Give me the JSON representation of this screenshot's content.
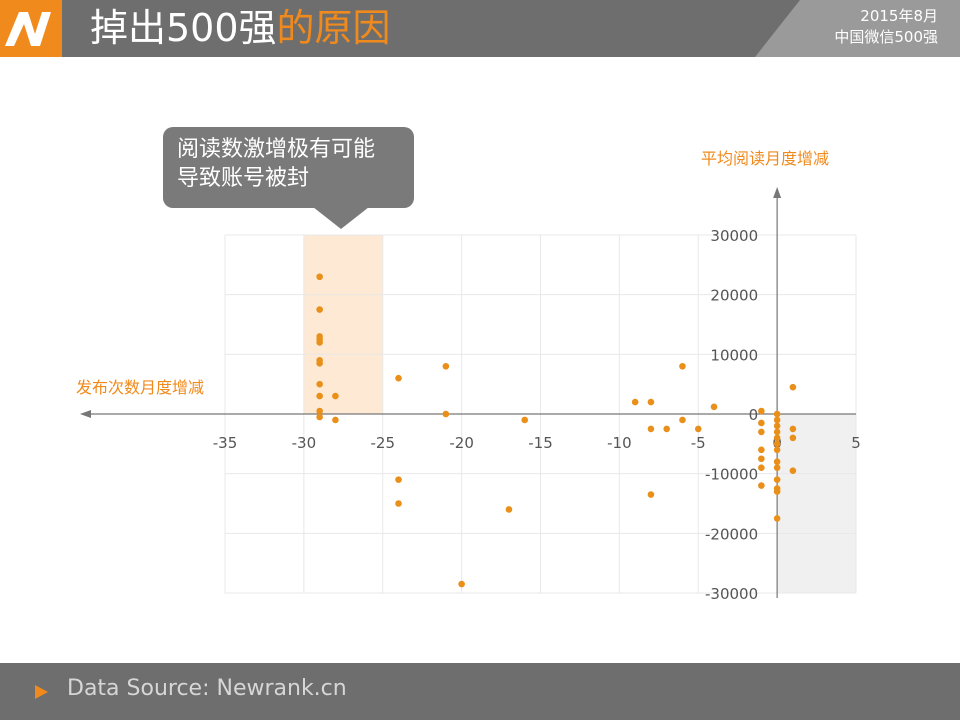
{
  "header": {
    "title_main": "掉出500强",
    "title_highlight": "的原因",
    "date": "2015年8月",
    "subtitle": "中国微信500强"
  },
  "callout": {
    "text_line1": "阅读数激增极有可能",
    "text_line2": "导致账号被封"
  },
  "footer": {
    "source": "Data Source: Newrank.cn"
  },
  "colors": {
    "accent": "#f08a1c",
    "header_bg": "#6e6e6e",
    "point": "#e8901a",
    "band": "#fde9d4",
    "quadrant": "#f0f0f0"
  },
  "chart_data": {
    "type": "scatter",
    "xlabel": "发布次数月度增减",
    "ylabel": "平均阅读月度增减",
    "xlim": [
      -35,
      5
    ],
    "ylim": [
      -30000,
      30000
    ],
    "x_ticks": [
      "-35",
      "-30",
      "-25",
      "-20",
      "-15",
      "-10",
      "-5",
      "0",
      "5"
    ],
    "y_ticks": [
      "30000",
      "20000",
      "10000",
      "0",
      "-10000",
      "-20000",
      "-30000"
    ],
    "highlight_band_x": [
      -30,
      -25
    ],
    "shaded_quadrant": {
      "x": [
        0,
        5
      ],
      "y": [
        -30000,
        0
      ]
    },
    "grid": true,
    "points": [
      [
        -29,
        23000
      ],
      [
        -29,
        17500
      ],
      [
        -29,
        13000
      ],
      [
        -29,
        12500
      ],
      [
        -29,
        12000
      ],
      [
        -29,
        9000
      ],
      [
        -29,
        8500
      ],
      [
        -29,
        5000
      ],
      [
        -29,
        3000
      ],
      [
        -29,
        500
      ],
      [
        -29,
        -500
      ],
      [
        -28,
        3000
      ],
      [
        -28,
        -1000
      ],
      [
        -24,
        6000
      ],
      [
        -24,
        -11000
      ],
      [
        -24,
        -15000
      ],
      [
        -21,
        8000
      ],
      [
        -21,
        0
      ],
      [
        -20,
        -28500
      ],
      [
        -17,
        -16000
      ],
      [
        -16,
        -1000
      ],
      [
        -9,
        2000
      ],
      [
        -8,
        2000
      ],
      [
        -8,
        -2500
      ],
      [
        -8,
        -13500
      ],
      [
        -7,
        -2500
      ],
      [
        -6,
        8000
      ],
      [
        -6,
        -1000
      ],
      [
        -5,
        -2500
      ],
      [
        -4,
        1200
      ],
      [
        -1,
        500
      ],
      [
        -1,
        -1500
      ],
      [
        -1,
        -3000
      ],
      [
        -1,
        -6000
      ],
      [
        -1,
        -7500
      ],
      [
        -1,
        -9000
      ],
      [
        -1,
        -12000
      ],
      [
        0,
        0
      ],
      [
        0,
        -1000
      ],
      [
        0,
        -2000
      ],
      [
        0,
        -3000
      ],
      [
        0,
        -4000
      ],
      [
        0,
        -5000
      ],
      [
        0,
        -6000
      ],
      [
        0,
        -8000
      ],
      [
        0,
        -9000
      ],
      [
        0,
        -11000
      ],
      [
        0,
        -12500
      ],
      [
        0,
        -13000
      ],
      [
        0,
        -17500
      ],
      [
        1,
        4500
      ],
      [
        1,
        -2500
      ],
      [
        1,
        -4000
      ],
      [
        1,
        -9500
      ]
    ]
  }
}
